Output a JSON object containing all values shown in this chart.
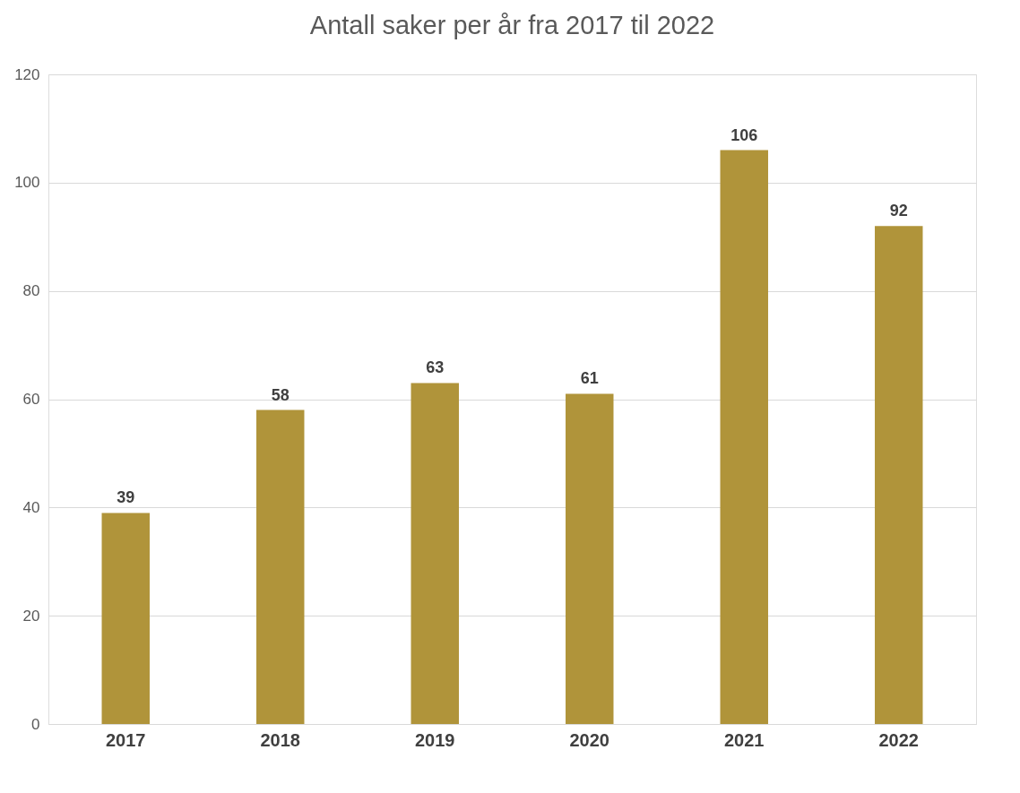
{
  "chart_data": {
    "type": "bar",
    "title": "Antall saker per år fra 2017 til 2022",
    "categories": [
      "2017",
      "2018",
      "2019",
      "2020",
      "2021",
      "2022"
    ],
    "values": [
      39,
      58,
      63,
      61,
      106,
      92
    ],
    "color": "#b0943a",
    "ylim": [
      0,
      120
    ],
    "yticks": [
      0,
      20,
      40,
      60,
      80,
      100,
      120
    ],
    "grid": "y",
    "data_labels": true
  }
}
